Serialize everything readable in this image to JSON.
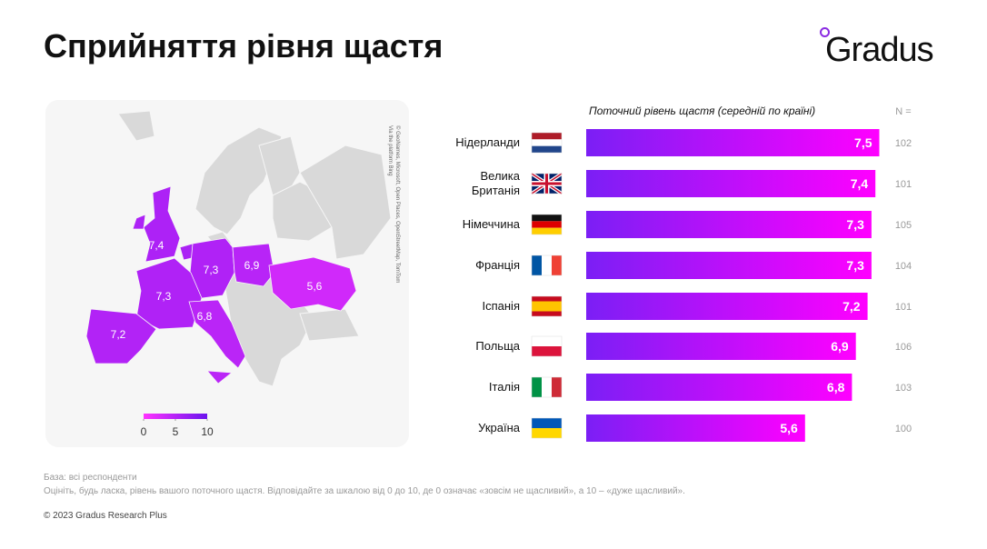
{
  "header": {
    "title": "Сприйняття рівня щастя",
    "logo": "Gradus"
  },
  "chart_data": {
    "type": "bar",
    "orientation": "horizontal",
    "title": "Поточний рівень щастя (середній по країні)",
    "categories": [
      "Нідерланди",
      "Велика\nБританія",
      "Німеччина",
      "Франція",
      "Іспанія",
      "Польща",
      "Італія",
      "Україна"
    ],
    "values": [
      7.5,
      7.4,
      7.3,
      7.3,
      7.2,
      6.9,
      6.8,
      5.6
    ],
    "value_labels": [
      "7,5",
      "7,4",
      "7,3",
      "7,3",
      "7,2",
      "6,9",
      "6,8",
      "5,6"
    ],
    "color_start": "#7b1ff5",
    "color_end": "#ff00ff",
    "xlim": [
      0,
      10
    ],
    "n_label": "N =",
    "n_values": [
      102,
      101,
      105,
      104,
      101,
      106,
      103,
      100
    ],
    "map": {
      "colorbar_lim": [
        0,
        10
      ],
      "colorbar_ticks": [
        0,
        5,
        10
      ],
      "colors": [
        "#ff33ff",
        "#6a14ee"
      ],
      "attribution": [
        "Via the platform Bing",
        "© GeoNames, Microsoft, Open Places, OpenStreetMap, TomTom"
      ]
    }
  },
  "footer": {
    "base": "База: всі респонденти",
    "question": "Оцініть, будь ласка, рівень вашого поточного щастя. Відповідайте за шкалою від 0 до 10, де 0 означає «зовсім не щасливий», а 10 – «дуже щасливий».",
    "copyright": "© 2023 Gradus Research Plus"
  }
}
